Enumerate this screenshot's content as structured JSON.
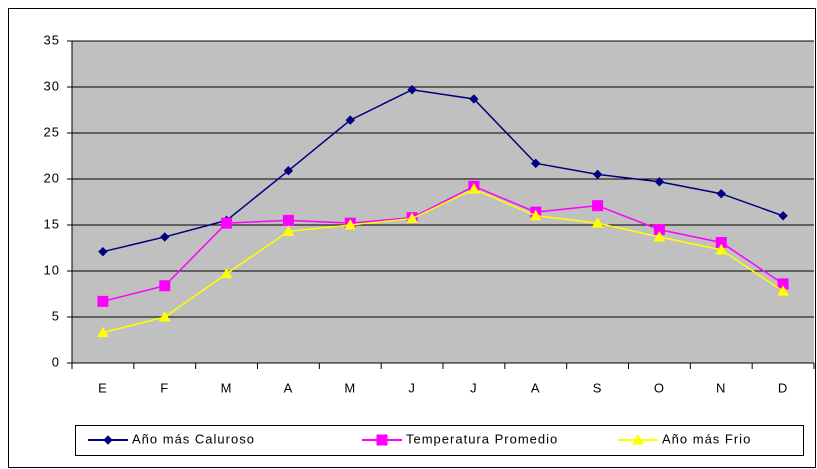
{
  "chart_data": {
    "type": "line",
    "categories": [
      "E",
      "F",
      "M",
      "A",
      "M",
      "J",
      "J",
      "A",
      "S",
      "O",
      "N",
      "D"
    ],
    "series": [
      {
        "name": "Año más Caluroso",
        "color": "#000080",
        "marker": "diamond",
        "values": [
          12.1,
          13.7,
          15.5,
          20.9,
          26.4,
          29.7,
          28.7,
          21.7,
          20.5,
          19.7,
          18.4,
          16.0
        ]
      },
      {
        "name": "Temperatura Promedio",
        "color": "#ff00ff",
        "marker": "square",
        "values": [
          6.7,
          8.4,
          15.2,
          15.5,
          15.2,
          15.8,
          19.2,
          16.4,
          17.1,
          14.5,
          13.1,
          8.6
        ]
      },
      {
        "name": "Año más Frio",
        "color": "#ffff00",
        "marker": "triangle",
        "values": [
          3.3,
          5.0,
          9.7,
          14.3,
          15.0,
          15.7,
          18.9,
          16.0,
          15.2,
          13.7,
          12.3,
          7.8
        ]
      }
    ],
    "ylim": [
      0,
      35
    ],
    "yticks": [
      0,
      5,
      10,
      15,
      20,
      25,
      30,
      35
    ],
    "grid": true,
    "legend": "bottom"
  }
}
